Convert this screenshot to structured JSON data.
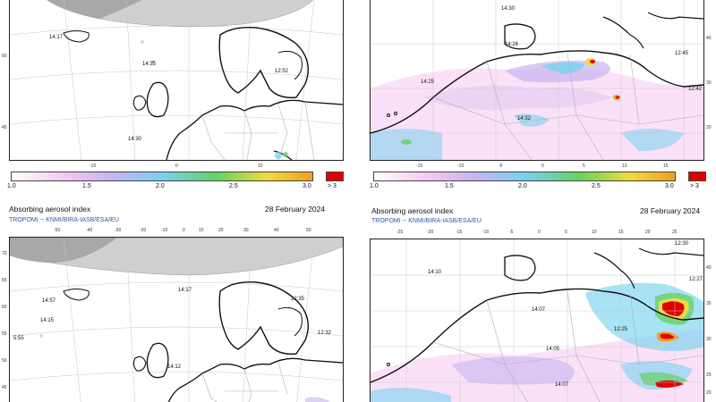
{
  "panels": [
    {
      "title": "",
      "date": "",
      "credit": "",
      "cbar_ticks": [
        "1.0",
        "1.5",
        "2.0",
        "2.5",
        "3.0"
      ],
      "cbar_over": "> 3",
      "times": [
        "14:17",
        "14:35",
        "12:52",
        "14:30"
      ],
      "side_labels": [
        "60",
        "45"
      ],
      "bottom_labels": [
        "-10",
        "0",
        "10"
      ]
    },
    {
      "title": "",
      "date": "",
      "credit": "",
      "cbar_ticks": [
        "1.0",
        "1.5",
        "2.0",
        "2.5",
        "3.0"
      ],
      "cbar_over": "> 3",
      "times": [
        "14:30",
        "14:26",
        "14:25",
        "14:32",
        "12:45",
        "12:42"
      ],
      "side_labels": [
        "40",
        "30",
        "20"
      ],
      "bottom_labels": [
        "-15",
        "-10",
        "-5",
        "0",
        "5",
        "10",
        "15"
      ]
    },
    {
      "title": "Absorbing aerosol index",
      "date": "28 February 2024",
      "credit": "TROPOMI  --  KNMI/BIRA-IASB/ESA/EU",
      "top_labels": [
        "-50",
        "-40",
        "-30",
        "-20",
        "-10",
        "0",
        "10",
        "20",
        "30",
        "40",
        "50"
      ],
      "times": [
        "14:17",
        "12:35",
        "14:57",
        "14:15",
        "12:32",
        "5:55",
        "14:12"
      ],
      "side_labels": [
        "70",
        "65",
        "60",
        "55",
        "50",
        "45"
      ]
    },
    {
      "title": "Absorbing aerosol index",
      "date": "28 February 2024",
      "credit": "TROPOMI  --  KNMI/BIRA-IASB/ESA/EU",
      "top_labels": [
        "-25",
        "-20",
        "-15",
        "-10",
        "-5",
        "0",
        "5",
        "10",
        "15",
        "20",
        "25"
      ],
      "times": [
        "12:30",
        "14:10",
        "12:27",
        "14:07",
        "12:25",
        "14:05",
        "14:07"
      ],
      "side_labels": [
        "40",
        "35",
        "30",
        "25",
        "20"
      ]
    }
  ],
  "colors": {
    "cbar_start": "#ffffff",
    "pink": "#f5c8f0",
    "lilac": "#c8b4f0",
    "cyan": "#78d2f0",
    "green": "#64d264",
    "yellow": "#f0dc3c",
    "orange": "#f0a01e",
    "red": "#e00000"
  }
}
